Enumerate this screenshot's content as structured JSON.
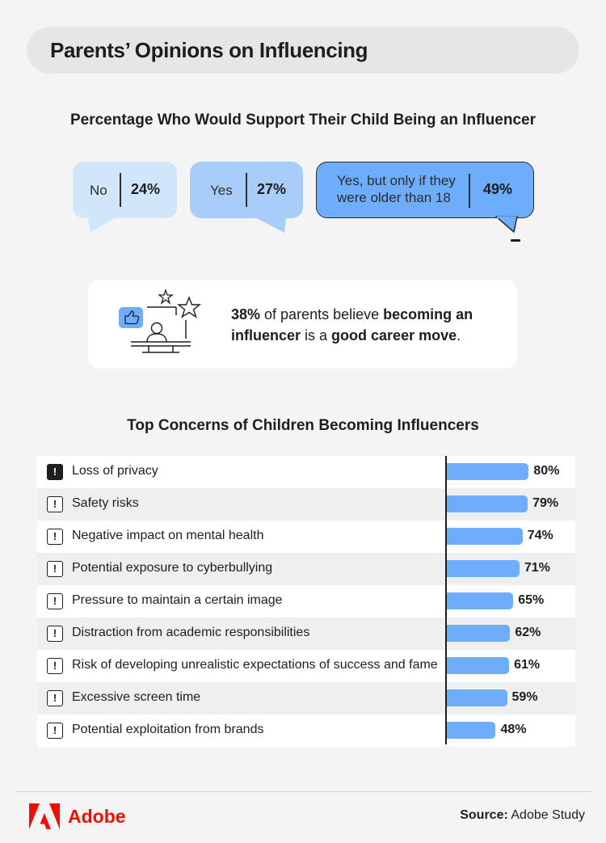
{
  "title": "Parents’ Opinions on Influencing",
  "support_section": {
    "title": "Percentage Who Would Support Their Child Being an Influencer",
    "options": [
      {
        "label": "No",
        "value": "24%"
      },
      {
        "label": "Yes",
        "value": "27%"
      },
      {
        "label_line1": "Yes, but only if they",
        "label_line2": "were older than 18",
        "value": "49%"
      }
    ]
  },
  "career_card": {
    "pct": "38%",
    "text1": " of parents believe ",
    "bold1": "becoming an influencer",
    "text2": " is a ",
    "bold2": "good career move",
    "text3": "."
  },
  "concerns_title": "Top Concerns of Children Becoming Influencers",
  "chart_data": {
    "type": "bar",
    "orientation": "horizontal",
    "title": "Top Concerns of Children Becoming Influencers",
    "categories": [
      "Loss of privacy",
      "Safety risks",
      "Negative impact on mental health",
      "Potential exposure to cyberbullying",
      "Pressure to maintain a certain image",
      "Distraction from academic responsibilities",
      "Risk of developing unrealistic expectations of success and fame",
      "Excessive screen time",
      "Potential exploitation from brands"
    ],
    "values": [
      80,
      79,
      74,
      71,
      65,
      62,
      61,
      59,
      48
    ],
    "value_labels": [
      "80%",
      "79%",
      "74%",
      "71%",
      "65%",
      "62%",
      "61%",
      "59%",
      "48%"
    ],
    "unit": "%",
    "bar_color": "#6eadfb"
  },
  "colors": {
    "bubble_no": "#d2e6fa",
    "bubble_yes": "#a9cdfb",
    "bubble_older": "#6eadfb",
    "brand": "#eb1000"
  },
  "footer": {
    "brand": "Adobe",
    "source_label": "Source:",
    "source_value": " Adobe Study"
  }
}
